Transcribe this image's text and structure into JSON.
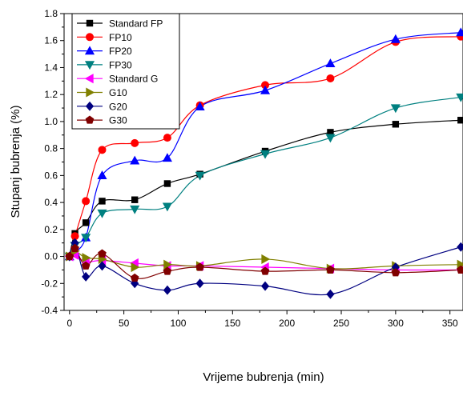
{
  "chart_data": {
    "type": "line",
    "title": "",
    "xlabel": "Vrijeme bubrenja (min)",
    "ylabel": "Stupanj bubrenja (%)",
    "xlim": [
      -5,
      362
    ],
    "ylim": [
      -0.4,
      1.8
    ],
    "xticks": [
      0,
      50,
      100,
      150,
      200,
      250,
      300,
      350
    ],
    "yticks": [
      -0.4,
      -0.2,
      0.0,
      0.2,
      0.4,
      0.6,
      0.8,
      1.0,
      1.2,
      1.4,
      1.6,
      1.8
    ],
    "x_tick_labels": [
      "0",
      "50",
      "100",
      "150",
      "200",
      "250",
      "300",
      "350"
    ],
    "y_tick_labels": [
      "-0.4",
      "-0.2",
      "0.0",
      "0.2",
      "0.4",
      "0.6",
      "0.8",
      "1.0",
      "1.2",
      "1.4",
      "1.6",
      "1.8"
    ],
    "grid": false,
    "legend_position": "top-left",
    "x": [
      0,
      5,
      15,
      30,
      60,
      90,
      120,
      180,
      240,
      300,
      360
    ],
    "series": [
      {
        "name": "Standard FP",
        "color": "#000000",
        "marker": "square",
        "values": [
          0.0,
          0.17,
          0.25,
          0.41,
          0.42,
          0.54,
          0.61,
          0.78,
          0.92,
          0.98,
          1.01
        ]
      },
      {
        "name": "FP10",
        "color": "#ff0000",
        "marker": "circle",
        "values": [
          0.0,
          0.15,
          0.41,
          0.79,
          0.84,
          0.88,
          1.12,
          1.27,
          1.32,
          1.59,
          1.63
        ]
      },
      {
        "name": "FP20",
        "color": "#0000ff",
        "marker": "triangle-up",
        "values": [
          0.0,
          0.03,
          0.14,
          0.6,
          0.71,
          0.73,
          1.11,
          1.23,
          1.43,
          1.61,
          1.66
        ]
      },
      {
        "name": "FP30",
        "color": "#008080",
        "marker": "triangle-down",
        "values": [
          0.0,
          0.08,
          0.14,
          0.32,
          0.35,
          0.37,
          0.6,
          0.76,
          0.88,
          1.1,
          1.18
        ]
      },
      {
        "name": "Standard G",
        "color": "#ff00ff",
        "marker": "triangle-left",
        "values": [
          0.0,
          0.01,
          -0.04,
          -0.03,
          -0.05,
          -0.07,
          -0.07,
          -0.08,
          -0.09,
          -0.1,
          -0.1
        ]
      },
      {
        "name": "G10",
        "color": "#808000",
        "marker": "triangle-right",
        "values": [
          0.0,
          0.04,
          -0.01,
          -0.02,
          -0.08,
          -0.06,
          -0.07,
          -0.02,
          -0.09,
          -0.07,
          -0.06
        ]
      },
      {
        "name": "G20",
        "color": "#000080",
        "marker": "diamond",
        "values": [
          0.0,
          0.1,
          -0.15,
          -0.07,
          -0.2,
          -0.25,
          -0.2,
          -0.22,
          -0.28,
          -0.08,
          0.07
        ]
      },
      {
        "name": "G30",
        "color": "#800000",
        "marker": "pentagon",
        "values": [
          0.0,
          0.06,
          -0.07,
          0.02,
          -0.16,
          -0.11,
          -0.08,
          -0.11,
          -0.1,
          -0.12,
          -0.1
        ]
      }
    ]
  }
}
